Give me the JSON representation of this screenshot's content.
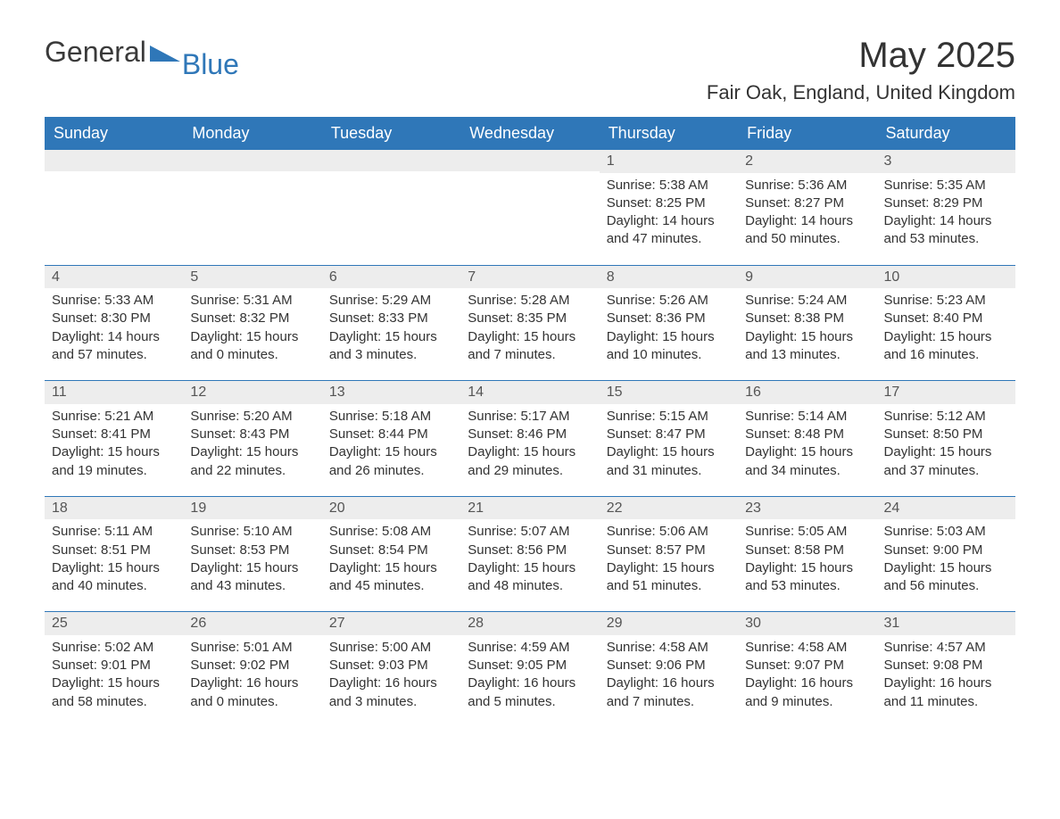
{
  "logo": {
    "general": "General",
    "blue": "Blue"
  },
  "title": "May 2025",
  "location": "Fair Oak, England, United Kingdom",
  "colors": {
    "header_bg": "#2f77b8",
    "header_text": "#ffffff",
    "daynum_bg": "#ededed",
    "body_text": "#333333",
    "logo_blue": "#2f77b8"
  },
  "day_headers": [
    "Sunday",
    "Monday",
    "Tuesday",
    "Wednesday",
    "Thursday",
    "Friday",
    "Saturday"
  ],
  "weeks": [
    [
      {
        "empty": true
      },
      {
        "empty": true
      },
      {
        "empty": true
      },
      {
        "empty": true
      },
      {
        "day": "1",
        "sunrise": "Sunrise: 5:38 AM",
        "sunset": "Sunset: 8:25 PM",
        "daylight1": "Daylight: 14 hours",
        "daylight2": "and 47 minutes."
      },
      {
        "day": "2",
        "sunrise": "Sunrise: 5:36 AM",
        "sunset": "Sunset: 8:27 PM",
        "daylight1": "Daylight: 14 hours",
        "daylight2": "and 50 minutes."
      },
      {
        "day": "3",
        "sunrise": "Sunrise: 5:35 AM",
        "sunset": "Sunset: 8:29 PM",
        "daylight1": "Daylight: 14 hours",
        "daylight2": "and 53 minutes."
      }
    ],
    [
      {
        "day": "4",
        "sunrise": "Sunrise: 5:33 AM",
        "sunset": "Sunset: 8:30 PM",
        "daylight1": "Daylight: 14 hours",
        "daylight2": "and 57 minutes."
      },
      {
        "day": "5",
        "sunrise": "Sunrise: 5:31 AM",
        "sunset": "Sunset: 8:32 PM",
        "daylight1": "Daylight: 15 hours",
        "daylight2": "and 0 minutes."
      },
      {
        "day": "6",
        "sunrise": "Sunrise: 5:29 AM",
        "sunset": "Sunset: 8:33 PM",
        "daylight1": "Daylight: 15 hours",
        "daylight2": "and 3 minutes."
      },
      {
        "day": "7",
        "sunrise": "Sunrise: 5:28 AM",
        "sunset": "Sunset: 8:35 PM",
        "daylight1": "Daylight: 15 hours",
        "daylight2": "and 7 minutes."
      },
      {
        "day": "8",
        "sunrise": "Sunrise: 5:26 AM",
        "sunset": "Sunset: 8:36 PM",
        "daylight1": "Daylight: 15 hours",
        "daylight2": "and 10 minutes."
      },
      {
        "day": "9",
        "sunrise": "Sunrise: 5:24 AM",
        "sunset": "Sunset: 8:38 PM",
        "daylight1": "Daylight: 15 hours",
        "daylight2": "and 13 minutes."
      },
      {
        "day": "10",
        "sunrise": "Sunrise: 5:23 AM",
        "sunset": "Sunset: 8:40 PM",
        "daylight1": "Daylight: 15 hours",
        "daylight2": "and 16 minutes."
      }
    ],
    [
      {
        "day": "11",
        "sunrise": "Sunrise: 5:21 AM",
        "sunset": "Sunset: 8:41 PM",
        "daylight1": "Daylight: 15 hours",
        "daylight2": "and 19 minutes."
      },
      {
        "day": "12",
        "sunrise": "Sunrise: 5:20 AM",
        "sunset": "Sunset: 8:43 PM",
        "daylight1": "Daylight: 15 hours",
        "daylight2": "and 22 minutes."
      },
      {
        "day": "13",
        "sunrise": "Sunrise: 5:18 AM",
        "sunset": "Sunset: 8:44 PM",
        "daylight1": "Daylight: 15 hours",
        "daylight2": "and 26 minutes."
      },
      {
        "day": "14",
        "sunrise": "Sunrise: 5:17 AM",
        "sunset": "Sunset: 8:46 PM",
        "daylight1": "Daylight: 15 hours",
        "daylight2": "and 29 minutes."
      },
      {
        "day": "15",
        "sunrise": "Sunrise: 5:15 AM",
        "sunset": "Sunset: 8:47 PM",
        "daylight1": "Daylight: 15 hours",
        "daylight2": "and 31 minutes."
      },
      {
        "day": "16",
        "sunrise": "Sunrise: 5:14 AM",
        "sunset": "Sunset: 8:48 PM",
        "daylight1": "Daylight: 15 hours",
        "daylight2": "and 34 minutes."
      },
      {
        "day": "17",
        "sunrise": "Sunrise: 5:12 AM",
        "sunset": "Sunset: 8:50 PM",
        "daylight1": "Daylight: 15 hours",
        "daylight2": "and 37 minutes."
      }
    ],
    [
      {
        "day": "18",
        "sunrise": "Sunrise: 5:11 AM",
        "sunset": "Sunset: 8:51 PM",
        "daylight1": "Daylight: 15 hours",
        "daylight2": "and 40 minutes."
      },
      {
        "day": "19",
        "sunrise": "Sunrise: 5:10 AM",
        "sunset": "Sunset: 8:53 PM",
        "daylight1": "Daylight: 15 hours",
        "daylight2": "and 43 minutes."
      },
      {
        "day": "20",
        "sunrise": "Sunrise: 5:08 AM",
        "sunset": "Sunset: 8:54 PM",
        "daylight1": "Daylight: 15 hours",
        "daylight2": "and 45 minutes."
      },
      {
        "day": "21",
        "sunrise": "Sunrise: 5:07 AM",
        "sunset": "Sunset: 8:56 PM",
        "daylight1": "Daylight: 15 hours",
        "daylight2": "and 48 minutes."
      },
      {
        "day": "22",
        "sunrise": "Sunrise: 5:06 AM",
        "sunset": "Sunset: 8:57 PM",
        "daylight1": "Daylight: 15 hours",
        "daylight2": "and 51 minutes."
      },
      {
        "day": "23",
        "sunrise": "Sunrise: 5:05 AM",
        "sunset": "Sunset: 8:58 PM",
        "daylight1": "Daylight: 15 hours",
        "daylight2": "and 53 minutes."
      },
      {
        "day": "24",
        "sunrise": "Sunrise: 5:03 AM",
        "sunset": "Sunset: 9:00 PM",
        "daylight1": "Daylight: 15 hours",
        "daylight2": "and 56 minutes."
      }
    ],
    [
      {
        "day": "25",
        "sunrise": "Sunrise: 5:02 AM",
        "sunset": "Sunset: 9:01 PM",
        "daylight1": "Daylight: 15 hours",
        "daylight2": "and 58 minutes."
      },
      {
        "day": "26",
        "sunrise": "Sunrise: 5:01 AM",
        "sunset": "Sunset: 9:02 PM",
        "daylight1": "Daylight: 16 hours",
        "daylight2": "and 0 minutes."
      },
      {
        "day": "27",
        "sunrise": "Sunrise: 5:00 AM",
        "sunset": "Sunset: 9:03 PM",
        "daylight1": "Daylight: 16 hours",
        "daylight2": "and 3 minutes."
      },
      {
        "day": "28",
        "sunrise": "Sunrise: 4:59 AM",
        "sunset": "Sunset: 9:05 PM",
        "daylight1": "Daylight: 16 hours",
        "daylight2": "and 5 minutes."
      },
      {
        "day": "29",
        "sunrise": "Sunrise: 4:58 AM",
        "sunset": "Sunset: 9:06 PM",
        "daylight1": "Daylight: 16 hours",
        "daylight2": "and 7 minutes."
      },
      {
        "day": "30",
        "sunrise": "Sunrise: 4:58 AM",
        "sunset": "Sunset: 9:07 PM",
        "daylight1": "Daylight: 16 hours",
        "daylight2": "and 9 minutes."
      },
      {
        "day": "31",
        "sunrise": "Sunrise: 4:57 AM",
        "sunset": "Sunset: 9:08 PM",
        "daylight1": "Daylight: 16 hours",
        "daylight2": "and 11 minutes."
      }
    ]
  ]
}
